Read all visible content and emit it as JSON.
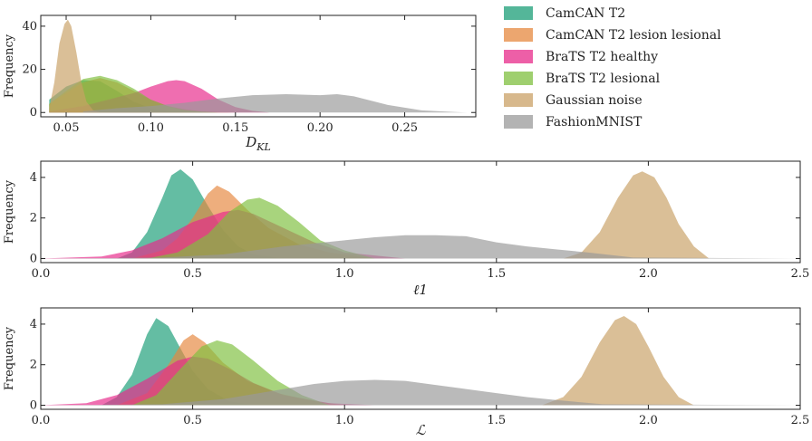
{
  "chart_data": [
    {
      "type": "area",
      "xlabel": "D_KL",
      "ylabel": "Frequency",
      "xlim": [
        0.035,
        0.292
      ],
      "ylim": [
        -2,
        45
      ],
      "xticks": [
        0.05,
        0.1,
        0.15,
        0.2,
        0.25
      ],
      "xtick_labels": [
        "0.05",
        "0.10",
        "0.15",
        "0.20",
        "0.25"
      ],
      "yticks": [
        0,
        20,
        40
      ],
      "ytick_labels": [
        "0",
        "20",
        "40"
      ],
      "series": [
        {
          "name": "CamCAN T2",
          "color": "#1b9e77",
          "x": [
            0.04,
            0.05,
            0.06,
            0.07,
            0.08,
            0.09,
            0.1,
            0.11,
            0.12,
            0.13,
            0.14,
            0.15
          ],
          "y": [
            6,
            12,
            15,
            14.5,
            10,
            5,
            2,
            0.8,
            0.3,
            0.1,
            0,
            0
          ]
        },
        {
          "name": "CamCAN T2 lesion lesional",
          "color": "#e6883f",
          "x": [
            0.04,
            0.05,
            0.06,
            0.07,
            0.08,
            0.09,
            0.1,
            0.11,
            0.12,
            0.13,
            0.14,
            0.15
          ],
          "y": [
            4,
            9,
            14,
            16,
            14,
            10,
            6,
            3,
            1.5,
            0.5,
            0.2,
            0
          ]
        },
        {
          "name": "BraTS T2 healthy",
          "color": "#e7298a",
          "x": [
            0.04,
            0.06,
            0.08,
            0.09,
            0.1,
            0.11,
            0.115,
            0.12,
            0.13,
            0.14,
            0.15,
            0.16,
            0.17
          ],
          "y": [
            0.5,
            3,
            7,
            9,
            12,
            14.5,
            15,
            14.5,
            11,
            6,
            2.5,
            0.8,
            0
          ]
        },
        {
          "name": "BraTS T2 lesional",
          "color": "#7fbf3f",
          "x": [
            0.04,
            0.05,
            0.06,
            0.07,
            0.08,
            0.09,
            0.1,
            0.11,
            0.12,
            0.13,
            0.14
          ],
          "y": [
            4,
            10,
            15.5,
            17,
            15,
            11,
            6,
            3,
            1.2,
            0.4,
            0
          ]
        },
        {
          "name": "Gaussian noise",
          "color": "#c9a065",
          "x": [
            0.04,
            0.043,
            0.046,
            0.049,
            0.051,
            0.053,
            0.056,
            0.059,
            0.062,
            0.066,
            0.07
          ],
          "y": [
            2,
            14,
            32,
            41,
            43,
            40,
            28,
            14,
            5,
            1,
            0
          ]
        },
        {
          "name": "FashionMNIST",
          "color": "#9a9a9a",
          "x": [
            0.06,
            0.08,
            0.1,
            0.12,
            0.14,
            0.16,
            0.18,
            0.2,
            0.21,
            0.22,
            0.24,
            0.26,
            0.28,
            0.287
          ],
          "y": [
            0.5,
            2,
            3,
            4.5,
            6.5,
            8,
            8.5,
            8,
            8.5,
            7.5,
            3.5,
            1,
            0.2,
            0
          ]
        }
      ]
    },
    {
      "type": "area",
      "xlabel": "ℓ1",
      "ylabel": "Frequency",
      "xlim": [
        0.0,
        2.5
      ],
      "ylim": [
        -0.2,
        4.8
      ],
      "xticks": [
        0.0,
        0.5,
        1.0,
        1.5,
        2.0,
        2.5
      ],
      "xtick_labels": [
        "0.0",
        "0.5",
        "1.0",
        "1.5",
        "2.0",
        "2.5"
      ],
      "yticks": [
        0,
        2,
        4
      ],
      "ytick_labels": [
        "0",
        "2",
        "4"
      ],
      "series": [
        {
          "name": "CamCAN T2",
          "color": "#1b9e77",
          "x": [
            0.0,
            0.25,
            0.3,
            0.35,
            0.4,
            0.43,
            0.46,
            0.5,
            0.55,
            0.6,
            0.65,
            0.7,
            0.8,
            2.5
          ],
          "y": [
            0,
            0,
            0.3,
            1.3,
            3.0,
            4.1,
            4.4,
            3.9,
            2.6,
            1.4,
            0.6,
            0.2,
            0,
            0
          ]
        },
        {
          "name": "CamCAN T2 lesion lesional",
          "color": "#e6883f",
          "x": [
            0.0,
            0.3,
            0.4,
            0.45,
            0.5,
            0.55,
            0.58,
            0.62,
            0.68,
            0.75,
            0.85,
            0.95,
            1.1,
            2.5
          ],
          "y": [
            0,
            0,
            0.4,
            1.0,
            2.0,
            3.2,
            3.6,
            3.3,
            2.4,
            1.5,
            0.7,
            0.3,
            0,
            0
          ]
        },
        {
          "name": "BraTS T2 healthy",
          "color": "#e7298a",
          "x": [
            0.0,
            0.2,
            0.3,
            0.4,
            0.5,
            0.6,
            0.65,
            0.7,
            0.8,
            0.9,
            1.0,
            1.2,
            2.5
          ],
          "y": [
            0,
            0.1,
            0.4,
            1.0,
            1.8,
            2.3,
            2.4,
            2.2,
            1.5,
            0.8,
            0.3,
            0,
            0
          ]
        },
        {
          "name": "BraTS T2 lesional",
          "color": "#7fbf3f",
          "x": [
            0.0,
            0.35,
            0.45,
            0.55,
            0.62,
            0.68,
            0.72,
            0.78,
            0.85,
            0.92,
            1.0,
            1.1,
            2.5
          ],
          "y": [
            0,
            0,
            0.3,
            1.2,
            2.3,
            2.9,
            3.0,
            2.6,
            1.8,
            0.9,
            0.4,
            0,
            0
          ]
        },
        {
          "name": "Gaussian noise",
          "color": "#c9a065",
          "x": [
            0.0,
            1.72,
            1.78,
            1.84,
            1.9,
            1.95,
            1.98,
            2.02,
            2.06,
            2.1,
            2.15,
            2.2,
            2.5
          ],
          "y": [
            0,
            0,
            0.3,
            1.3,
            3.0,
            4.1,
            4.3,
            4.0,
            3.0,
            1.7,
            0.6,
            0,
            0
          ]
        },
        {
          "name": "FashionMNIST",
          "color": "#9a9a9a",
          "x": [
            0.0,
            0.4,
            0.6,
            0.8,
            1.0,
            1.1,
            1.2,
            1.3,
            1.4,
            1.5,
            1.6,
            1.7,
            1.8,
            1.95,
            2.5
          ],
          "y": [
            0,
            0.05,
            0.2,
            0.6,
            0.9,
            1.05,
            1.15,
            1.15,
            1.1,
            0.8,
            0.6,
            0.45,
            0.3,
            0.05,
            0
          ]
        }
      ]
    },
    {
      "type": "area",
      "xlabel": "ℒ",
      "ylabel": "Frequency",
      "xlim": [
        0.0,
        2.5
      ],
      "ylim": [
        -0.2,
        4.8
      ],
      "xticks": [
        0.0,
        0.5,
        1.0,
        1.5,
        2.0,
        2.5
      ],
      "xtick_labels": [
        "0.0",
        "0.5",
        "1.0",
        "1.5",
        "2.0",
        "2.5"
      ],
      "yticks": [
        0,
        2,
        4
      ],
      "ytick_labels": [
        "0",
        "2",
        "4"
      ],
      "series": [
        {
          "name": "CamCAN T2",
          "color": "#1b9e77",
          "x": [
            0.0,
            0.2,
            0.25,
            0.3,
            0.35,
            0.38,
            0.42,
            0.46,
            0.5,
            0.55,
            0.62,
            0.7,
            2.5
          ],
          "y": [
            0,
            0,
            0.4,
            1.5,
            3.5,
            4.3,
            3.9,
            2.8,
            1.7,
            0.8,
            0.2,
            0,
            0
          ]
        },
        {
          "name": "CamCAN T2 lesion lesional",
          "color": "#e6883f",
          "x": [
            0.0,
            0.25,
            0.35,
            0.42,
            0.47,
            0.5,
            0.54,
            0.6,
            0.68,
            0.78,
            0.9,
            1.0,
            2.5
          ],
          "y": [
            0,
            0,
            0.6,
            2.0,
            3.2,
            3.5,
            3.1,
            2.1,
            1.2,
            0.6,
            0.2,
            0,
            0
          ]
        },
        {
          "name": "BraTS T2 healthy",
          "color": "#e7298a",
          "x": [
            0.0,
            0.15,
            0.25,
            0.35,
            0.45,
            0.5,
            0.55,
            0.62,
            0.7,
            0.8,
            0.95,
            1.1,
            2.5
          ],
          "y": [
            0,
            0.1,
            0.5,
            1.3,
            2.2,
            2.4,
            2.3,
            1.8,
            1.1,
            0.5,
            0.1,
            0,
            0
          ]
        },
        {
          "name": "BraTS T2 lesional",
          "color": "#7fbf3f",
          "x": [
            0.0,
            0.3,
            0.38,
            0.46,
            0.53,
            0.58,
            0.63,
            0.7,
            0.78,
            0.86,
            0.95,
            2.5
          ],
          "y": [
            0,
            0,
            0.5,
            1.8,
            2.9,
            3.2,
            3.0,
            2.2,
            1.2,
            0.5,
            0,
            0
          ]
        },
        {
          "name": "Gaussian noise",
          "color": "#c9a065",
          "x": [
            0.0,
            1.65,
            1.72,
            1.78,
            1.84,
            1.89,
            1.92,
            1.96,
            2.0,
            2.05,
            2.1,
            2.15,
            2.5
          ],
          "y": [
            0,
            0,
            0.4,
            1.4,
            3.1,
            4.2,
            4.4,
            4.0,
            2.9,
            1.4,
            0.4,
            0,
            0
          ]
        },
        {
          "name": "FashionMNIST",
          "color": "#9a9a9a",
          "x": [
            0.0,
            0.4,
            0.6,
            0.8,
            0.9,
            1.0,
            1.1,
            1.2,
            1.3,
            1.4,
            1.5,
            1.6,
            1.7,
            1.85,
            2.5
          ],
          "y": [
            0,
            0.05,
            0.3,
            0.8,
            1.05,
            1.2,
            1.25,
            1.2,
            1.0,
            0.8,
            0.6,
            0.4,
            0.25,
            0.05,
            0
          ]
        }
      ]
    }
  ],
  "legend": {
    "placement": "top-right",
    "entries": [
      {
        "label": "CamCAN T2",
        "color": "#1b9e77"
      },
      {
        "label": "CamCAN T2 lesion lesional",
        "color": "#e6883f"
      },
      {
        "label": "BraTS T2 healthy",
        "color": "#e7298a"
      },
      {
        "label": "BraTS T2 lesional",
        "color": "#7fbf3f"
      },
      {
        "label": "Gaussian noise",
        "color": "#c9a065"
      },
      {
        "label": "FashionMNIST",
        "color": "#9a9a9a"
      }
    ]
  }
}
